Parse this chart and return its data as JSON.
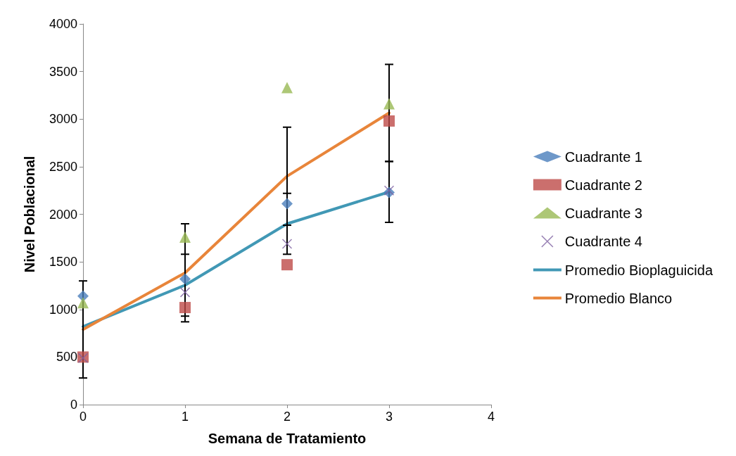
{
  "chart_data": {
    "type": "scatter",
    "xlabel": "Semana de Tratamiento",
    "ylabel": "Nivel Poblacional",
    "x": [
      0,
      1,
      2,
      3
    ],
    "xlim": [
      0,
      4
    ],
    "xticks": [
      0,
      1,
      2,
      3,
      4
    ],
    "ylim": [
      0,
      4000
    ],
    "yticks": [
      0,
      500,
      1000,
      1500,
      2000,
      2500,
      3000,
      3500,
      4000
    ],
    "grid": false,
    "legend": "right",
    "series": [
      {
        "name": "Cuadrante 1",
        "marker": "diamond",
        "color": "#4a7ebb",
        "values": [
          1140,
          1320,
          2110,
          2230
        ]
      },
      {
        "name": "Cuadrante 2",
        "marker": "square",
        "color": "#be4b48",
        "values": [
          500,
          1020,
          1470,
          2980
        ]
      },
      {
        "name": "Cuadrante 3",
        "marker": "triangle",
        "color": "#98b954",
        "values": [
          1070,
          1760,
          3330,
          3160
        ]
      },
      {
        "name": "Cuadrante 4",
        "marker": "cross",
        "color": "#7d60a0",
        "values": [
          490,
          1180,
          1690,
          2250
        ]
      },
      {
        "name": "Promedio Bioplaguicida",
        "type": "line",
        "marker": "none",
        "color": "#4198b5",
        "values": [
          820,
          1255,
          1900,
          2235
        ],
        "errors": [
          null,
          325,
          320,
          320
        ]
      },
      {
        "name": "Promedio Blanco",
        "type": "line",
        "marker": "none",
        "color": "#e8853a",
        "values": [
          790,
          1385,
          2400,
          3065
        ],
        "errors": [
          510,
          515,
          515,
          510
        ]
      }
    ]
  }
}
